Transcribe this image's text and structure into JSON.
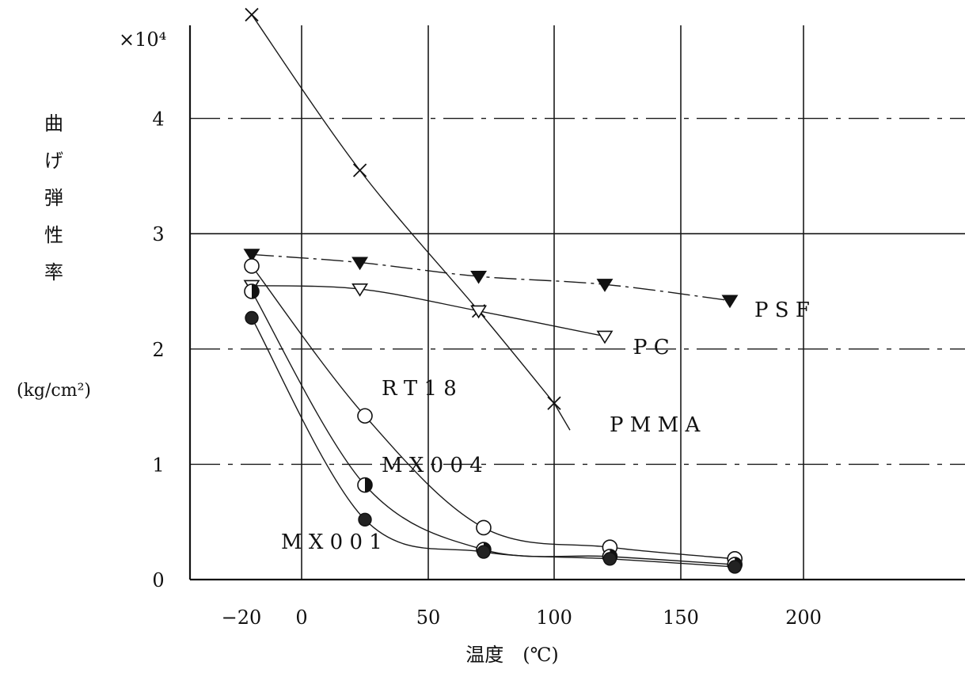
{
  "chart_data": {
    "type": "line",
    "title": "",
    "xlabel": "温度　(℃)",
    "ylabel": "曲げ弾性率",
    "ylabel_unit": "(kg/cm²)",
    "y_multiplier_label": "×10⁴",
    "x_tick_labels": [
      "−20",
      "0",
      "50",
      "100",
      "150",
      "200"
    ],
    "x_ticks": [
      -20,
      0,
      50,
      100,
      150,
      200
    ],
    "y_tick_labels": [
      "0",
      "1",
      "2",
      "3",
      "4"
    ],
    "y_ticks": [
      0,
      1,
      2,
      3,
      4
    ],
    "xlim": [
      -20,
      200
    ],
    "ylim": [
      0,
      4.8
    ],
    "grid": true,
    "legend": "inline labels",
    "series": [
      {
        "name": "PMMA",
        "marker": "x",
        "x": [
          -20,
          23,
          70,
          100
        ],
        "y": [
          4.9,
          3.55,
          2.33,
          1.53
        ]
      },
      {
        "name": "PSF",
        "marker": "filled-triangle-down",
        "x": [
          -20,
          23,
          70,
          120,
          170
        ],
        "y": [
          2.82,
          2.75,
          2.63,
          2.56,
          2.42
        ]
      },
      {
        "name": "PC",
        "marker": "open-triangle-down",
        "x": [
          -20,
          23,
          70,
          120
        ],
        "y": [
          2.55,
          2.52,
          2.33,
          2.11
        ]
      },
      {
        "name": "RT18",
        "marker": "open-circle",
        "x": [
          -20,
          25,
          72,
          122,
          172
        ],
        "y": [
          2.72,
          1.42,
          0.45,
          0.28,
          0.18
        ]
      },
      {
        "name": "MX004",
        "marker": "half-filled-circle",
        "x": [
          -20,
          25,
          72,
          122,
          172
        ],
        "y": [
          2.5,
          0.82,
          0.26,
          0.2,
          0.13
        ]
      },
      {
        "name": "MX001",
        "marker": "filled-circle",
        "x": [
          -20,
          25,
          72,
          122,
          172
        ],
        "y": [
          2.27,
          0.52,
          0.24,
          0.18,
          0.11
        ]
      }
    ]
  },
  "labels": {
    "psf": "P S F",
    "pc": "P C",
    "rt18": "R T 1 8",
    "pmma": "P M M A",
    "mx004": "M X 0 0 4",
    "mx001": "M X 0 0 1"
  },
  "ylabel_chars": [
    "曲",
    "げ",
    "弾",
    "性",
    "率"
  ]
}
